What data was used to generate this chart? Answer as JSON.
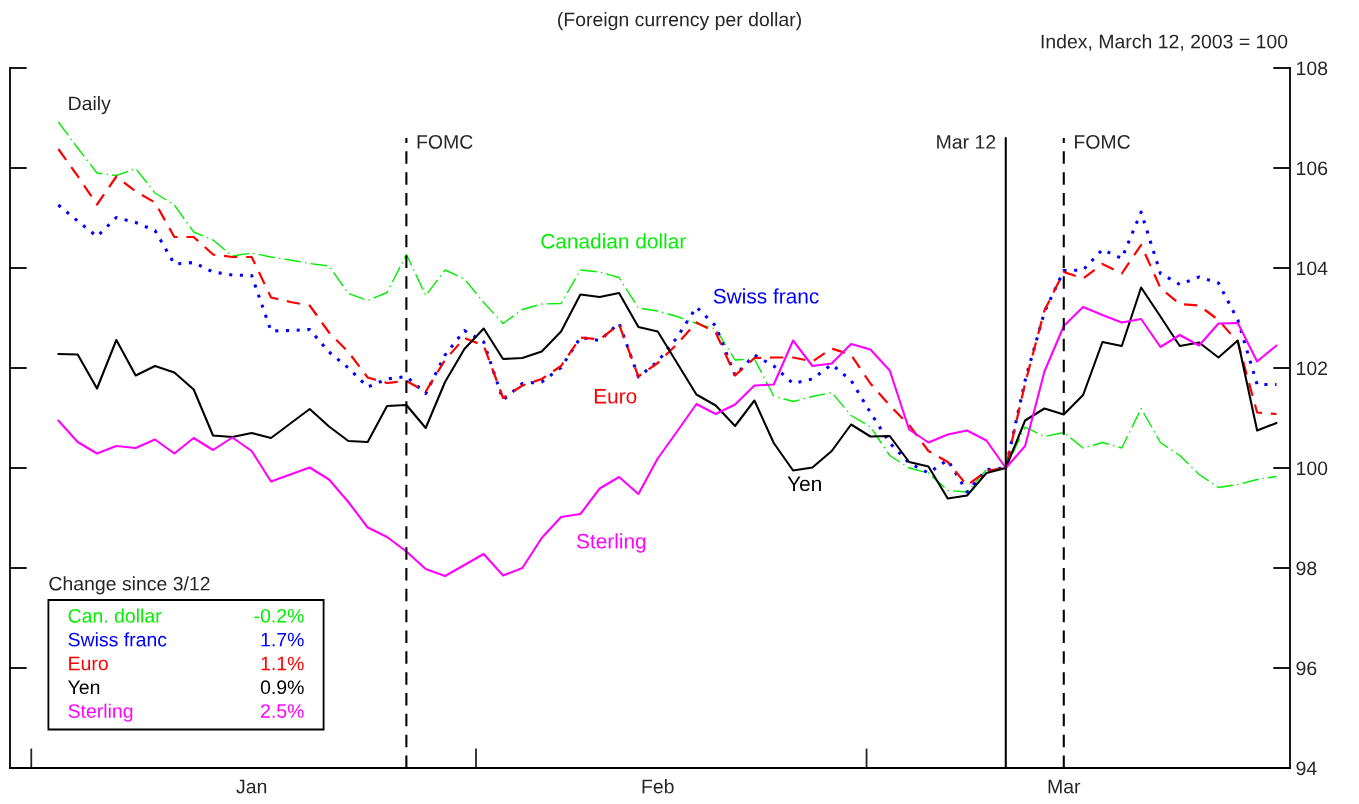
{
  "chart_data": {
    "type": "line",
    "title": "(Foreign currency per dollar)",
    "ylabel": "Index, March 12, 2003 = 100",
    "legend_title": "Change since 3/12",
    "annotations": [
      "Daily",
      "FOMC",
      "Mar 12",
      "FOMC",
      "Can. dollar",
      "-0.2%",
      "Swiss franc",
      "1.7%",
      "Euro",
      "1.1%",
      "Yen",
      "0.9%",
      "Sterling",
      "2.5%"
    ],
    "categories": [
      null,
      null,
      null,
      null,
      null,
      null,
      null,
      null,
      null,
      null,
      "Jan",
      null,
      null,
      null,
      null,
      null,
      null,
      null,
      null,
      null,
      null,
      null,
      null,
      null,
      null,
      null,
      null,
      null,
      null,
      null,
      null,
      "Feb",
      null,
      null,
      null,
      null,
      null,
      null,
      null,
      null,
      null,
      null,
      null,
      null,
      null,
      null,
      null,
      null,
      null,
      null,
      null,
      null,
      "Mar",
      null,
      null,
      null,
      null,
      null,
      null,
      null,
      null,
      null,
      null,
      null
    ],
    "series": [
      {
        "name": "Canadian dollar",
        "color": "#00ee00",
        "line_style": "dashdot",
        "values": [
          106.92,
          106.4,
          105.9,
          105.85,
          105.99,
          105.5,
          105.26,
          104.72,
          104.56,
          104.24,
          104.3,
          104.22,
          104.16,
          104.09,
          104.04,
          103.49,
          103.35,
          103.51,
          104.27,
          103.45,
          103.96,
          103.78,
          103.31,
          102.89,
          103.17,
          103.28,
          103.29,
          103.96,
          103.92,
          103.81,
          103.2,
          103.14,
          103.03,
          102.89,
          102.78,
          102.16,
          102.18,
          101.44,
          101.33,
          101.43,
          101.51,
          101.05,
          100.82,
          100.25,
          100.0,
          99.9,
          99.55,
          99.52,
          99.97,
          100.0,
          100.82,
          100.63,
          100.71,
          100.4,
          100.51,
          100.4,
          101.19,
          100.51,
          100.25,
          99.87,
          99.61,
          99.67,
          99.77,
          99.83
        ]
      },
      {
        "name": "Swiss franc",
        "color": "#0000ff",
        "line_style": "dotted",
        "values": [
          105.26,
          104.94,
          104.63,
          105.01,
          104.91,
          104.75,
          104.08,
          104.11,
          103.92,
          103.86,
          103.85,
          102.74,
          102.75,
          102.77,
          102.32,
          102.0,
          101.62,
          101.78,
          101.83,
          101.49,
          102.26,
          102.75,
          102.52,
          101.36,
          101.69,
          101.72,
          102.01,
          102.61,
          102.55,
          102.9,
          101.82,
          102.13,
          102.61,
          103.22,
          102.84,
          101.85,
          102.26,
          102.04,
          101.69,
          101.78,
          102.07,
          101.75,
          101.11,
          100.5,
          100.1,
          99.9,
          100.16,
          99.52,
          99.97,
          100.0,
          101.75,
          103.12,
          103.95,
          103.96,
          104.37,
          104.19,
          105.12,
          103.89,
          103.67,
          103.82,
          103.7,
          102.96,
          101.67,
          101.67
        ]
      },
      {
        "name": "Euro",
        "color": "#ff0000",
        "line_style": "dashed",
        "values": [
          106.38,
          105.84,
          105.27,
          105.83,
          105.53,
          105.31,
          104.62,
          104.62,
          104.27,
          104.22,
          104.22,
          103.41,
          103.32,
          103.25,
          102.71,
          102.32,
          101.81,
          101.7,
          101.74,
          101.53,
          102.16,
          102.6,
          102.45,
          101.4,
          101.65,
          101.78,
          102.04,
          102.61,
          102.57,
          102.87,
          101.83,
          102.1,
          102.48,
          102.91,
          102.71,
          101.85,
          102.2,
          102.21,
          102.21,
          102.13,
          102.39,
          102.26,
          101.69,
          101.25,
          100.86,
          100.34,
          100.12,
          99.65,
          99.94,
          100.0,
          101.69,
          103.15,
          103.92,
          103.79,
          104.08,
          103.89,
          104.46,
          103.6,
          103.28,
          103.25,
          102.96,
          102.52,
          101.11,
          101.08
        ]
      },
      {
        "name": "Yen",
        "color": "#000000",
        "line_style": "solid",
        "values": [
          102.28,
          102.27,
          101.59,
          102.56,
          101.85,
          102.04,
          101.91,
          101.57,
          100.65,
          100.62,
          100.7,
          100.6,
          100.89,
          101.18,
          100.83,
          100.54,
          100.52,
          101.24,
          101.26,
          100.8,
          101.72,
          102.38,
          102.79,
          102.18,
          102.2,
          102.33,
          102.73,
          103.47,
          103.42,
          103.5,
          102.82,
          102.73,
          102.1,
          101.47,
          101.25,
          100.84,
          101.35,
          100.5,
          99.95,
          100.01,
          100.34,
          100.87,
          100.63,
          100.64,
          100.12,
          100.03,
          99.39,
          99.45,
          99.9,
          100.0,
          100.95,
          101.19,
          101.07,
          101.46,
          102.52,
          102.44,
          103.61,
          103.03,
          102.44,
          102.51,
          102.21,
          102.55,
          100.75,
          100.9
        ]
      },
      {
        "name": "Sterling",
        "color": "#ff00ff",
        "line_style": "solid",
        "values": [
          100.95,
          100.52,
          100.29,
          100.44,
          100.4,
          100.57,
          100.29,
          100.6,
          100.36,
          100.61,
          100.34,
          99.73,
          99.87,
          100.01,
          99.77,
          99.32,
          98.81,
          98.62,
          98.33,
          97.98,
          97.84,
          98.06,
          98.28,
          97.85,
          98.0,
          98.6,
          99.02,
          99.08,
          99.59,
          99.82,
          99.48,
          100.19,
          100.73,
          101.28,
          101.08,
          101.27,
          101.65,
          101.67,
          102.55,
          102.04,
          102.09,
          102.48,
          102.37,
          101.95,
          100.77,
          100.51,
          100.67,
          100.75,
          100.55,
          100.0,
          100.44,
          101.93,
          102.84,
          103.22,
          103.06,
          102.91,
          102.98,
          102.42,
          102.66,
          102.45,
          102.89,
          102.9,
          102.13,
          102.45
        ]
      }
    ],
    "ylim": [
      94,
      108
    ],
    "yticks": [
      94,
      96,
      98,
      100,
      102,
      104,
      106,
      108
    ],
    "legend": false
  }
}
